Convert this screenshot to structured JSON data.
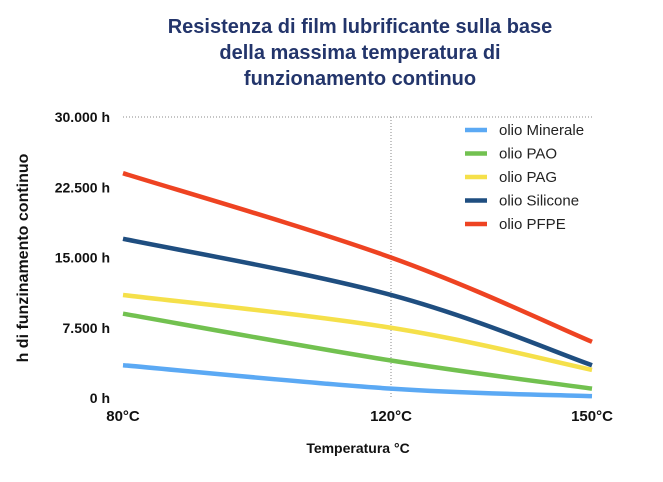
{
  "chart_data": {
    "type": "line",
    "title_lines": [
      "Resistenza di film lubrificante sulla base",
      "della massima temperatura di",
      "funzionamento continuo"
    ],
    "xlabel": "Temperatura °C",
    "ylabel": "h di funzinamento continuo",
    "x_ticks": [
      "80°C",
      "120°C",
      "150°C"
    ],
    "y_ticks": [
      "0 h",
      "7.500 h",
      "15.000 h",
      "22.500 h",
      "30.000 h"
    ],
    "ylim": [
      0,
      30000
    ],
    "xlim": [
      80,
      150
    ],
    "grid": "dotted vertical line at 120°C and horizontal line at 30.000 h",
    "legend_position": "top-right",
    "series": [
      {
        "name": "olio Minerale",
        "color": "#5ba9f4",
        "points": [
          [
            80,
            3500
          ],
          [
            120,
            1000
          ],
          [
            150,
            200
          ]
        ]
      },
      {
        "name": "olio PAO",
        "color": "#72c150",
        "points": [
          [
            80,
            9000
          ],
          [
            120,
            4000
          ],
          [
            150,
            1000
          ]
        ]
      },
      {
        "name": "olio PAG",
        "color": "#f5e04a",
        "points": [
          [
            80,
            11000
          ],
          [
            120,
            7500
          ],
          [
            150,
            3000
          ]
        ]
      },
      {
        "name": "olio Silicone",
        "color": "#1f4e80",
        "points": [
          [
            80,
            17000
          ],
          [
            120,
            11000
          ],
          [
            150,
            3500
          ]
        ]
      },
      {
        "name": "olio PFPE",
        "color": "#ee4322",
        "points": [
          [
            80,
            24000
          ],
          [
            120,
            15000
          ],
          [
            150,
            6000
          ]
        ]
      }
    ]
  }
}
